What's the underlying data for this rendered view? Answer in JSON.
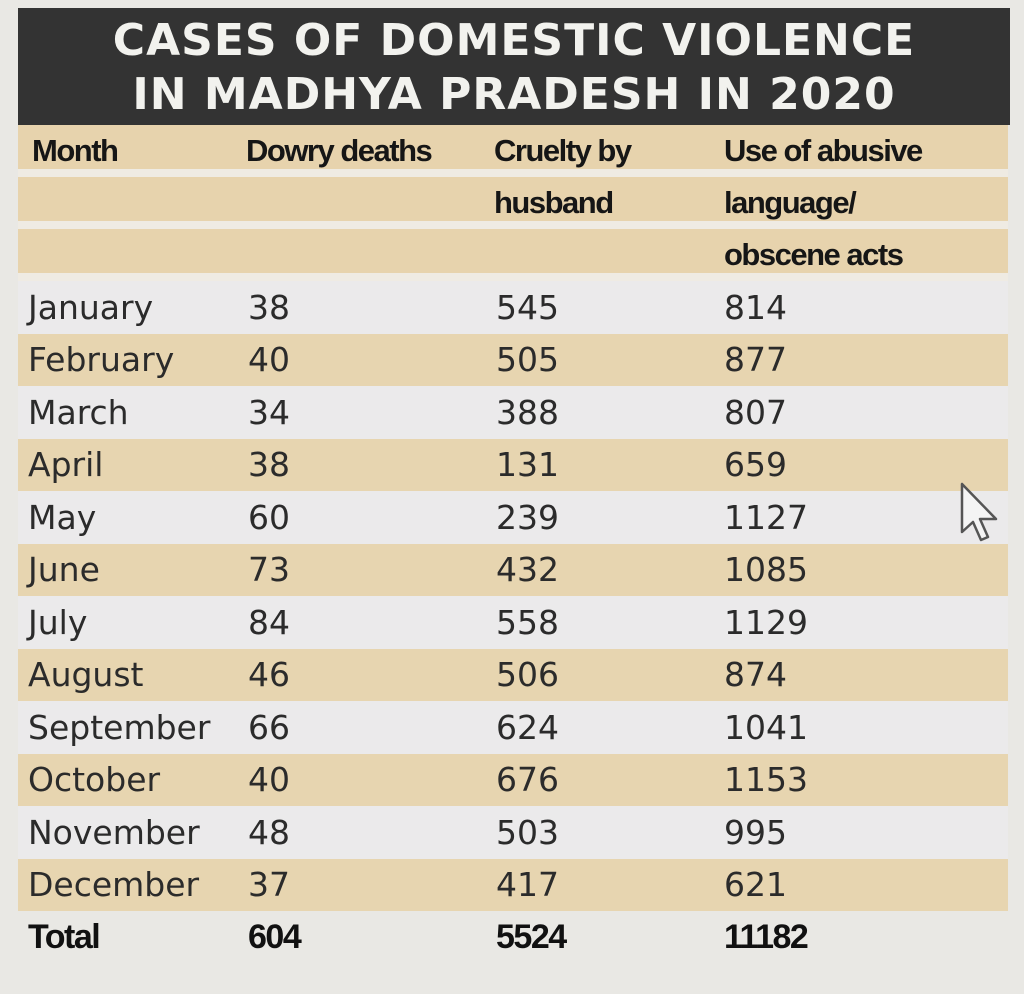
{
  "title": {
    "line1": "CASES OF DOMESTIC VIOLENCE",
    "line2": "IN MADHYA PRADESH IN 2020"
  },
  "headers": {
    "month": "Month",
    "dowry": "Dowry deaths",
    "cruelty": "Cruelty by husband",
    "abuse": "Use of abusive language/ obscene acts"
  },
  "rows": [
    {
      "month": "January",
      "dowry": "38",
      "cruelty": "545",
      "abuse": "814"
    },
    {
      "month": "February",
      "dowry": "40",
      "cruelty": "505",
      "abuse": "877"
    },
    {
      "month": "March",
      "dowry": "34",
      "cruelty": "388",
      "abuse": "807"
    },
    {
      "month": "April",
      "dowry": "38",
      "cruelty": "131",
      "abuse": "659"
    },
    {
      "month": "May",
      "dowry": "60",
      "cruelty": "239",
      "abuse": "1127"
    },
    {
      "month": "June",
      "dowry": "73",
      "cruelty": "432",
      "abuse": "1085"
    },
    {
      "month": "July",
      "dowry": "84",
      "cruelty": "558",
      "abuse": "1129"
    },
    {
      "month": "August",
      "dowry": "46",
      "cruelty": "506",
      "abuse": "874"
    },
    {
      "month": "September",
      "dowry": "66",
      "cruelty": "624",
      "abuse": "1041"
    },
    {
      "month": "October",
      "dowry": "40",
      "cruelty": "676",
      "abuse": "1153"
    },
    {
      "month": "November",
      "dowry": "48",
      "cruelty": "503",
      "abuse": "995"
    },
    {
      "month": "December",
      "dowry": "37",
      "cruelty": "417",
      "abuse": "621"
    }
  ],
  "total": {
    "label": "Total",
    "dowry": "604",
    "cruelty": "5524",
    "abuse": "11182"
  },
  "icons": {
    "cursor": "mouse-pointer-icon"
  },
  "colors": {
    "title_bg": "#333333",
    "title_text": "#f2f2ee",
    "stripe_tan": "#e7d5b0",
    "stripe_light": "#ebeaeb",
    "text": "#2b2b2b"
  }
}
